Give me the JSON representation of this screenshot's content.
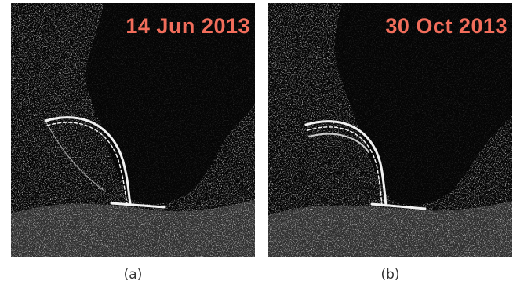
{
  "panels": [
    {
      "date": "14 Jun 2013",
      "caption": "(a)"
    },
    {
      "date": "30 Oct 2013",
      "caption": "(b)"
    }
  ],
  "colors": {
    "date_text": "#f26d5b",
    "background": "#050505",
    "caption": "#333333"
  }
}
